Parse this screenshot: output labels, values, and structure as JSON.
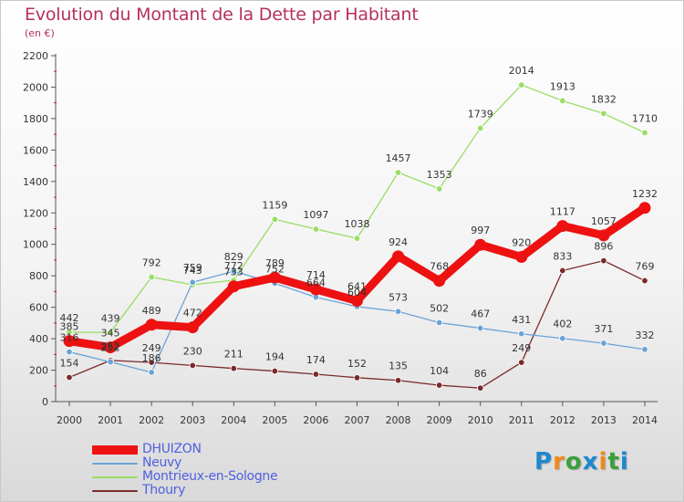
{
  "title": "Evolution du Montant de la Dette par Habitant",
  "subtitle": "(en €)",
  "logo": {
    "text": "Proxiti",
    "letters": [
      {
        "ch": "P",
        "color": "#1e88d0"
      },
      {
        "ch": "r",
        "color": "#f08a1c"
      },
      {
        "ch": "o",
        "color": "#3aa03a"
      },
      {
        "ch": "x",
        "color": "#1e88d0"
      },
      {
        "ch": "i",
        "color": "#f08a1c"
      },
      {
        "ch": "t",
        "color": "#3aa03a"
      },
      {
        "ch": "i",
        "color": "#1e88d0"
      }
    ]
  },
  "chart_data": {
    "type": "line",
    "title": "Evolution du Montant de la Dette par Habitant",
    "subtitle": "(en €)",
    "x": [
      "2000",
      "2001",
      "2002",
      "2003",
      "2004",
      "2005",
      "2006",
      "2007",
      "2008",
      "2009",
      "2010",
      "2011",
      "2012",
      "2013",
      "2014"
    ],
    "ylim": [
      0,
      2200
    ],
    "yticks": [
      0,
      200,
      400,
      600,
      800,
      1000,
      1200,
      1400,
      1600,
      1800,
      2000,
      2200
    ],
    "grid": false,
    "legend_position": "bottom-left",
    "series": [
      {
        "name": "DHUIZON",
        "color": "#ee1111",
        "values": [
          385,
          345,
          489,
          472,
          733,
          789,
          714,
          641,
          924,
          768,
          997,
          920,
          1117,
          1057,
          1232
        ],
        "labels": [
          "385",
          "345",
          "489",
          "472",
          "733",
          "789",
          "714",
          "641",
          "924",
          "768",
          "997",
          "920",
          "1117",
          "1057",
          "1232"
        ]
      },
      {
        "name": "Neuvy",
        "color": "#6ba3d6",
        "values": [
          316,
          252,
          186,
          759,
          829,
          752,
          664,
          604,
          573,
          502,
          467,
          431,
          402,
          371,
          332
        ],
        "labels": [
          "316",
          "252",
          "186",
          "759",
          "829",
          "752",
          "664",
          "604",
          "573",
          "502",
          "467",
          "431",
          "402",
          "371",
          "332"
        ]
      },
      {
        "name": "Montrieux-en-Sologne",
        "color": "#99dd66",
        "values": [
          442,
          439,
          792,
          743,
          772,
          1159,
          1097,
          1038,
          1457,
          1353,
          1739,
          2014,
          1913,
          1832,
          1710
        ],
        "labels": [
          "442",
          "439",
          "792",
          "743",
          "772",
          "1159",
          "1097",
          "1038",
          "1457",
          "1353",
          "1739",
          "2014",
          "1913",
          "1832",
          "1710"
        ]
      },
      {
        "name": "Thoury",
        "color": "#7a2a2a",
        "values": [
          154,
          262,
          249,
          230,
          211,
          194,
          174,
          152,
          135,
          104,
          86,
          249,
          833,
          896,
          769
        ],
        "labels": [
          "154",
          "262",
          "249",
          "230",
          "211",
          "194",
          "174",
          "152",
          "135",
          "104",
          "86",
          "249",
          "833",
          "896",
          "769"
        ]
      }
    ]
  }
}
